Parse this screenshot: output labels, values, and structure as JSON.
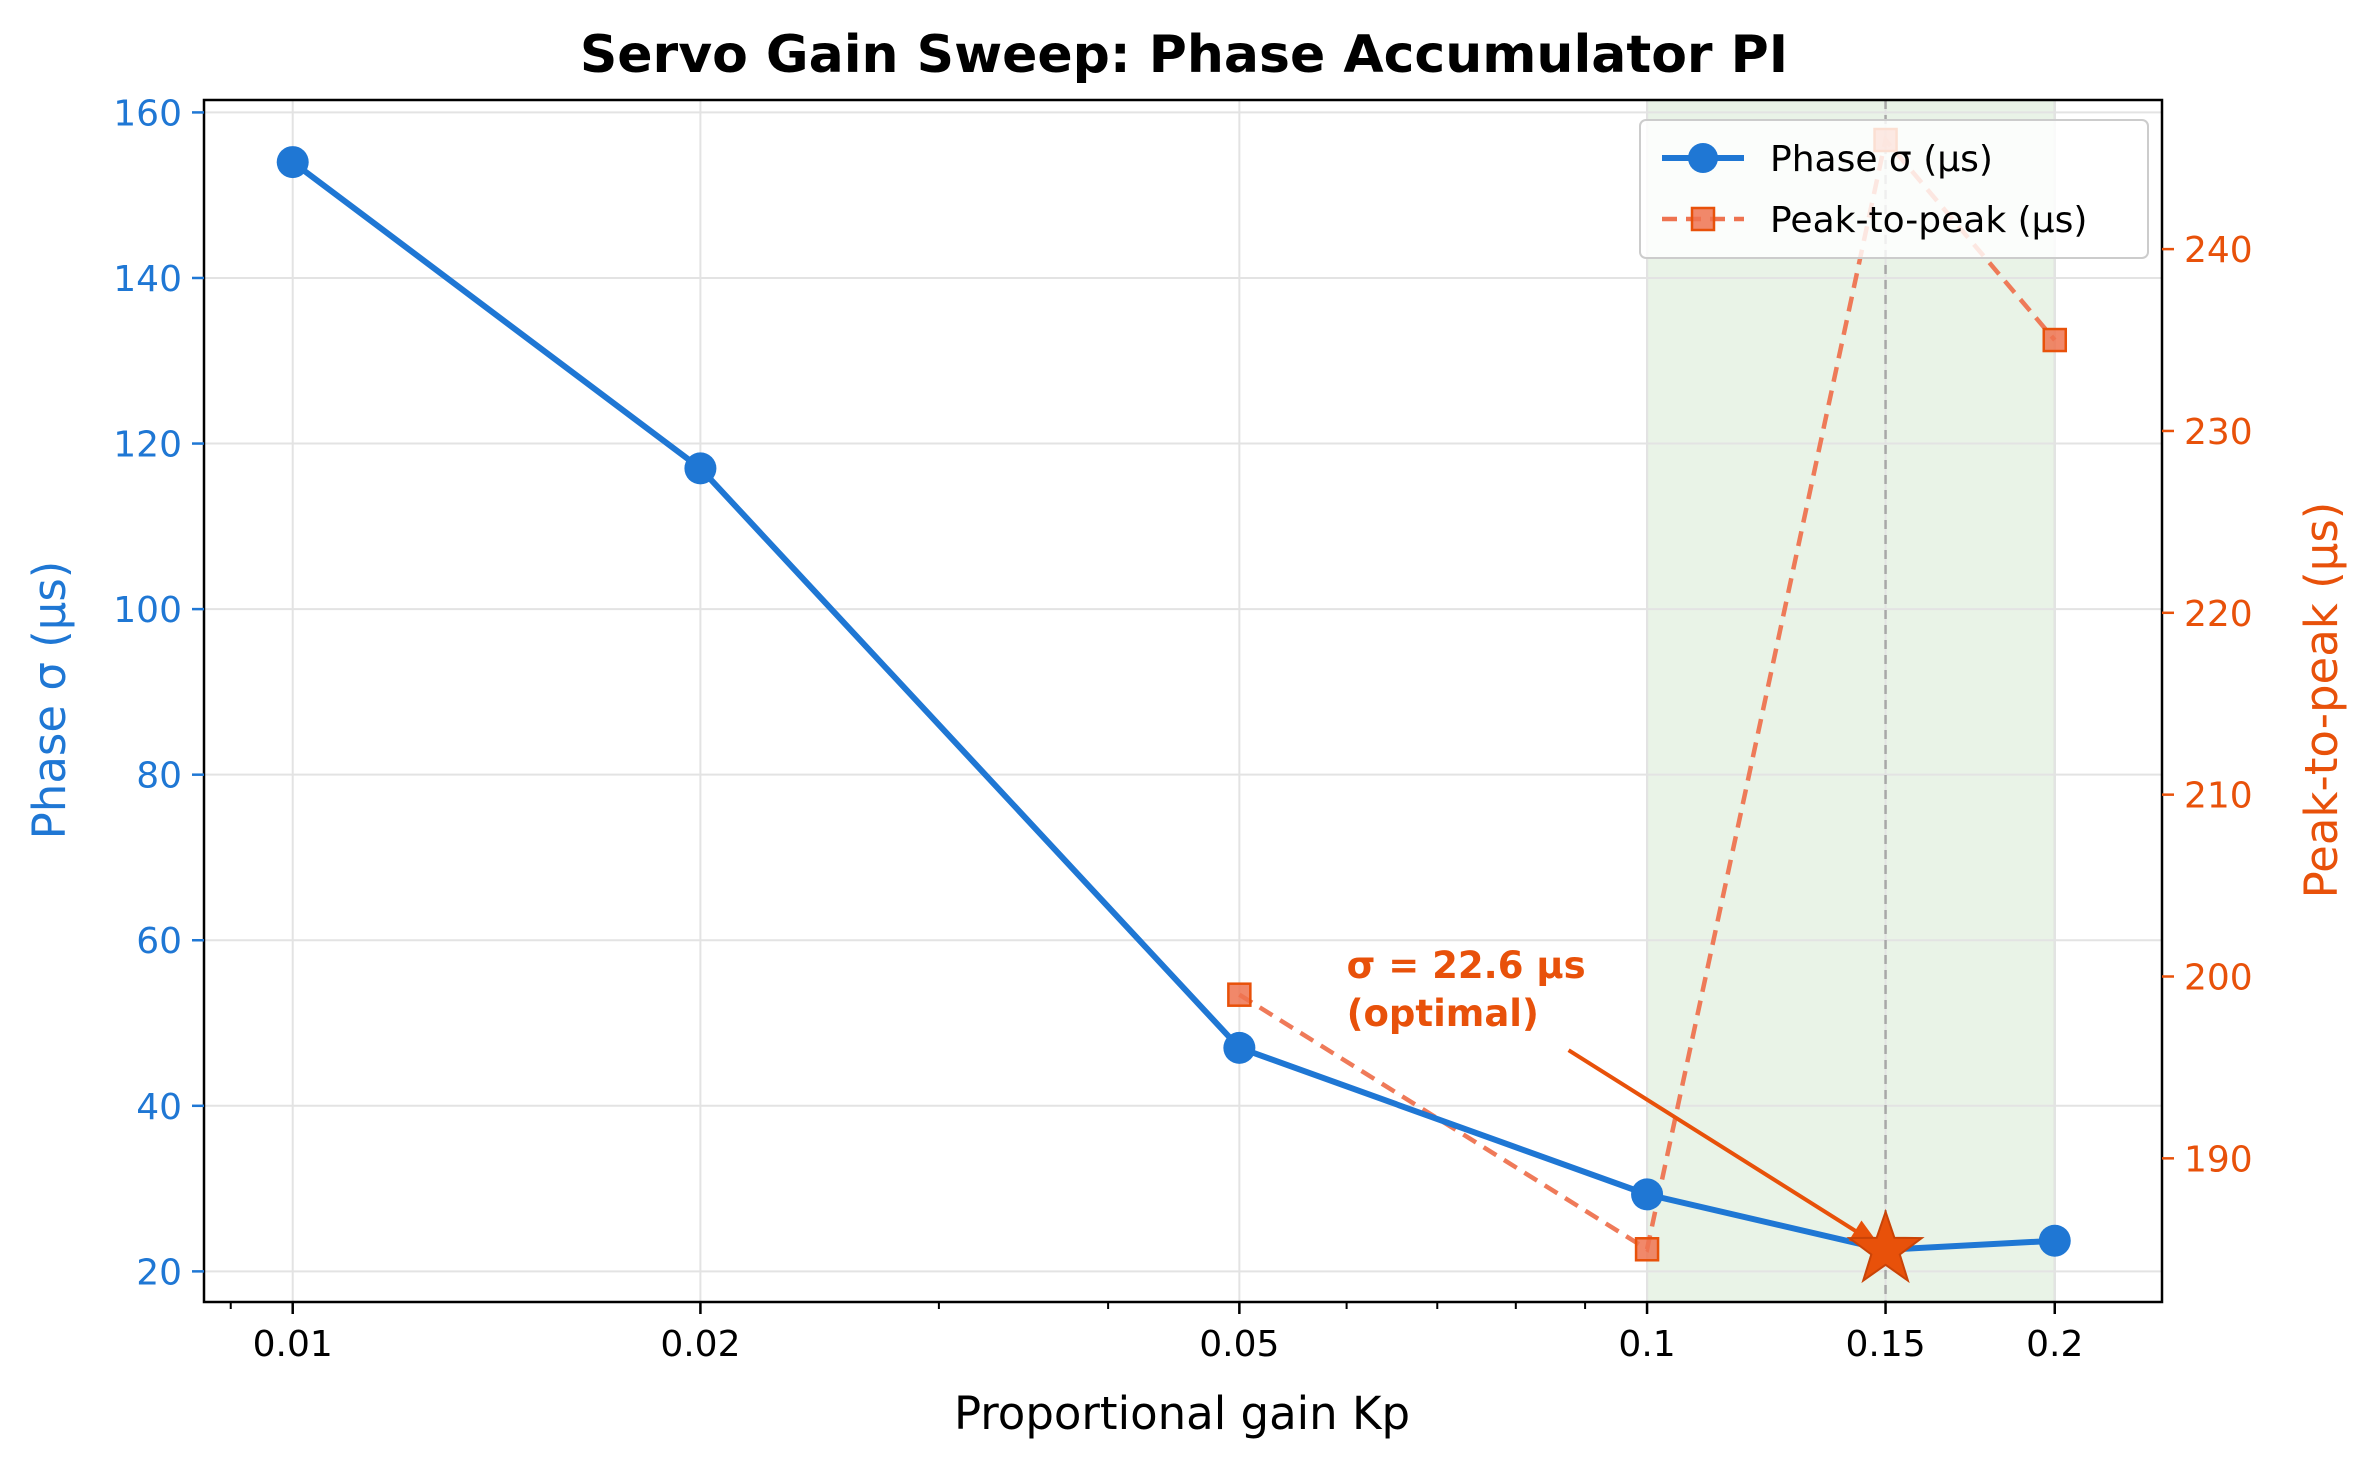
{
  "chart_data": {
    "type": "line",
    "title": "Servo Gain Sweep: Phase Accumulator PI",
    "xlabel": "Proportional gain Kp",
    "xscale": "log",
    "xlim": [
      0.0086,
      0.24
    ],
    "xticks": [
      0.01,
      0.02,
      0.05,
      0.1,
      0.15,
      0.2
    ],
    "xtick_labels": [
      "0.01",
      "0.02",
      "0.05",
      "0.1",
      "0.15",
      "0.2"
    ],
    "y_left": {
      "label": "Phase σ (µs)",
      "lim": [
        16.3,
        161.5
      ],
      "ticks": [
        20,
        40,
        60,
        80,
        100,
        120,
        140,
        160
      ],
      "color": "#1f77d4"
    },
    "y_right": {
      "label": "Peak-to-peak (µs)",
      "lim": [
        182.1,
        248.2
      ],
      "ticks": [
        190,
        200,
        210,
        220,
        230,
        240
      ],
      "color": "#e8510a"
    },
    "series": [
      {
        "name": "Phase σ (µs)",
        "axis": "left",
        "style": "solid line, circle markers",
        "color": "#1f77d4",
        "x": [
          0.01,
          0.02,
          0.05,
          0.1,
          0.15,
          0.2
        ],
        "y": [
          154,
          117,
          47,
          29.3,
          22.6,
          23.7
        ]
      },
      {
        "name": "Peak-to-peak (µs)",
        "axis": "right",
        "style": "dashed line, square markers",
        "color": "#ee7350",
        "x": [
          0.05,
          0.1,
          0.15,
          0.2
        ],
        "y": [
          199,
          185,
          246,
          235
        ]
      }
    ],
    "highlight_band": {
      "x": [
        0.1,
        0.2
      ],
      "color": "#e9f3e7"
    },
    "reference_line": {
      "x": 0.15,
      "style": "dashed gray"
    },
    "optimal_marker": {
      "x": 0.15,
      "y": 22.6,
      "shape": "star",
      "color": "#e8510a"
    },
    "annotation": {
      "lines": [
        "σ = 22.6 µs",
        "(optimal)"
      ],
      "text_x": 0.06,
      "text_y": 53,
      "arrow_to": [
        0.15,
        22.6
      ],
      "color": "#e8510a"
    },
    "legend": {
      "placement": "top-right"
    },
    "grid": true
  }
}
